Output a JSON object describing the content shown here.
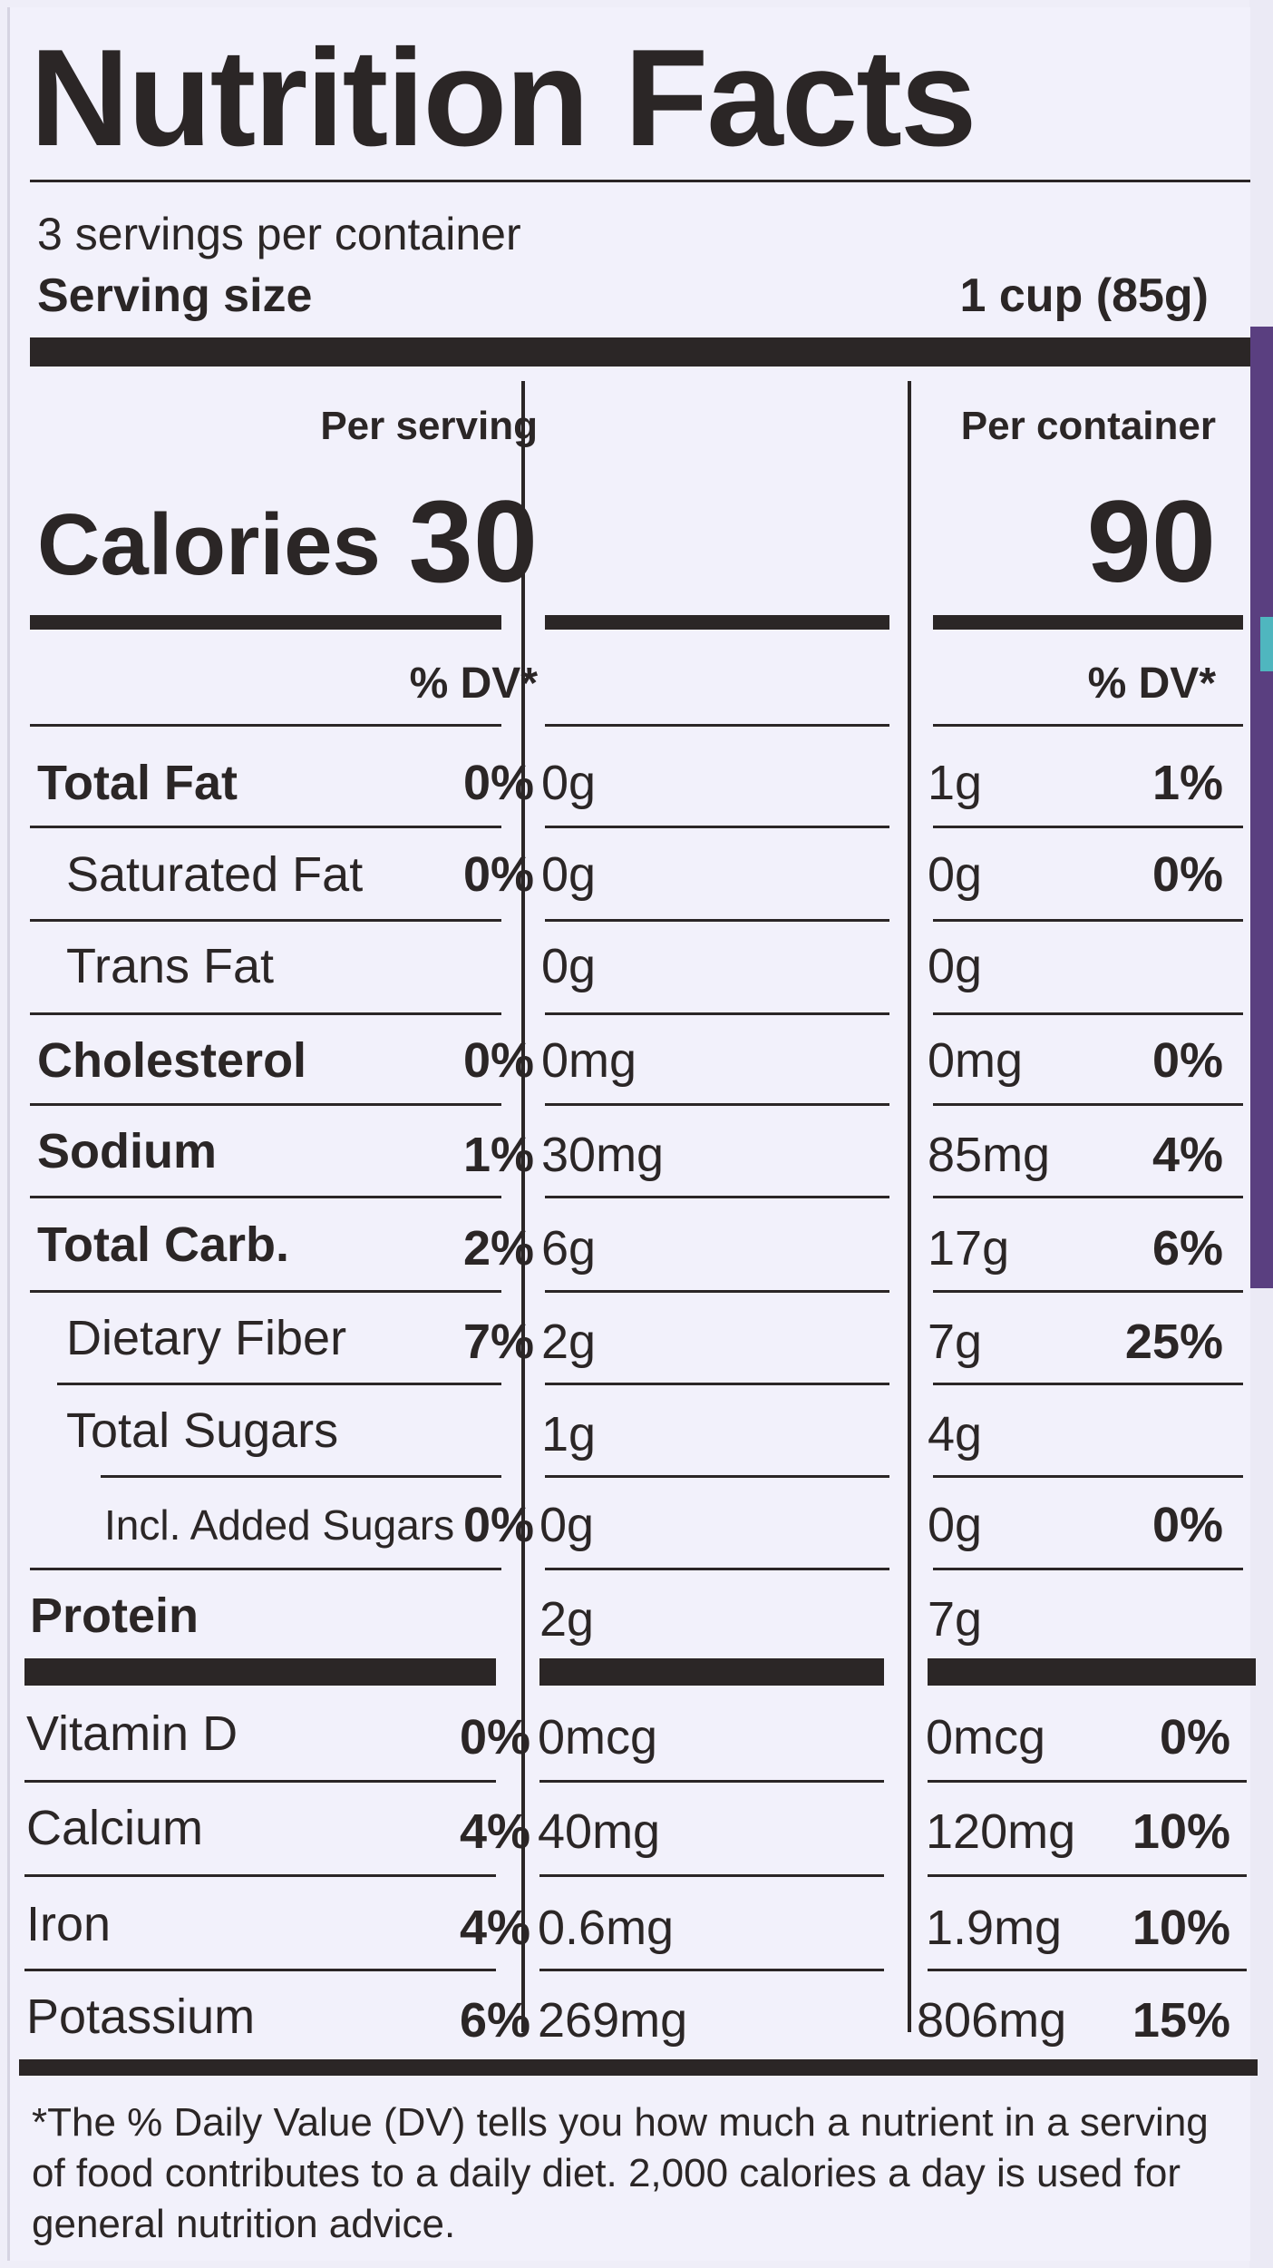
{
  "title": "Nutrition Facts",
  "servings_per_container": "3 servings per container",
  "serving_size_label": "Serving size",
  "serving_size_value": "1 cup (85g)",
  "columns": {
    "per_serving": "Per serving",
    "per_container": "Per container",
    "dv_serving": "% DV*",
    "dv_container": "% DV*"
  },
  "calories": {
    "label": "Calories",
    "per_serving": "30",
    "per_container": "90"
  },
  "nutrients": [
    {
      "label": "Total Fat",
      "serving_amount": "0g",
      "serving_dv": "0%",
      "container_amount": "1g",
      "container_dv": "1%"
    },
    {
      "label": "Saturated Fat",
      "serving_amount": "0g",
      "serving_dv": "0%",
      "container_amount": "0g",
      "container_dv": "0%"
    },
    {
      "label": "Trans Fat",
      "serving_amount": "0g",
      "serving_dv": "",
      "container_amount": "0g",
      "container_dv": ""
    },
    {
      "label": "Cholesterol",
      "serving_amount": "0mg",
      "serving_dv": "0%",
      "container_amount": "0mg",
      "container_dv": "0%"
    },
    {
      "label": "Sodium",
      "serving_amount": "30mg",
      "serving_dv": "1%",
      "container_amount": "85mg",
      "container_dv": "4%"
    },
    {
      "label": "Total Carb.",
      "serving_amount": "6g",
      "serving_dv": "2%",
      "container_amount": "17g",
      "container_dv": "6%"
    },
    {
      "label": "Dietary Fiber",
      "serving_amount": "2g",
      "serving_dv": "7%",
      "container_amount": "7g",
      "container_dv": "25%"
    },
    {
      "label": "Total Sugars",
      "serving_amount": "1g",
      "serving_dv": "",
      "container_amount": "4g",
      "container_dv": ""
    },
    {
      "label": "Incl. Added Sugars",
      "serving_amount": "0g",
      "serving_dv": "0%",
      "container_amount": "0g",
      "container_dv": "0%"
    },
    {
      "label": "Protein",
      "serving_amount": "2g",
      "serving_dv": "",
      "container_amount": "7g",
      "container_dv": ""
    }
  ],
  "vitamins": [
    {
      "label": "Vitamin D",
      "serving_amount": "0mcg",
      "serving_dv": "0%",
      "container_amount": "0mcg",
      "container_dv": "0%"
    },
    {
      "label": "Calcium",
      "serving_amount": "40mg",
      "serving_dv": "4%",
      "container_amount": "120mg",
      "container_dv": "10%"
    },
    {
      "label": "Iron",
      "serving_amount": "0.6mg",
      "serving_dv": "4%",
      "container_amount": "1.9mg",
      "container_dv": "10%"
    },
    {
      "label": "Potassium",
      "serving_amount": "269mg",
      "serving_dv": "6%",
      "container_amount": "806mg",
      "container_dv": "15%"
    }
  ],
  "footnote": "*The % Daily Value (DV) tells you how much a nutrient in a serving of food contributes to a daily diet. 2,000 calories a day is used for general nutrition advice."
}
